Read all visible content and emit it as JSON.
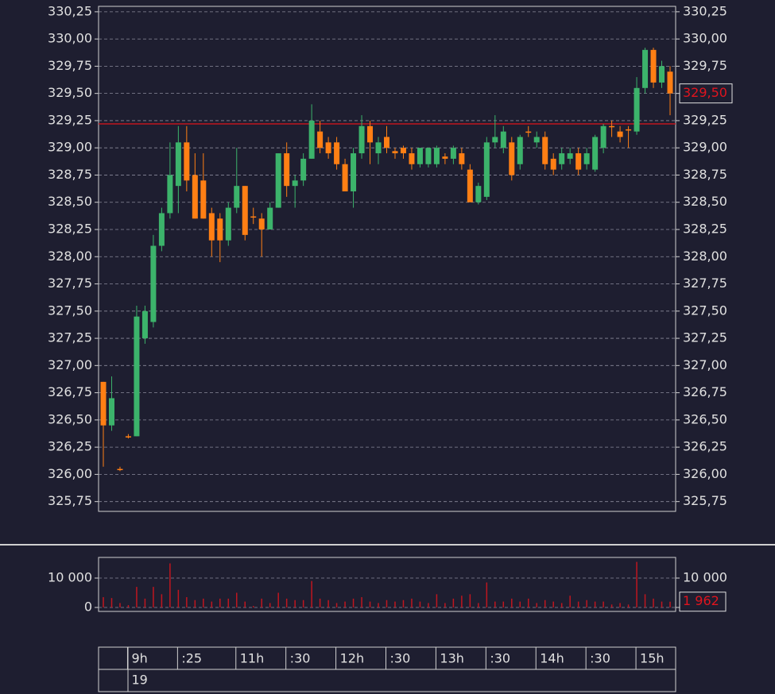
{
  "chart_data": {
    "type": "candlestick",
    "categories": [
      null,
      null,
      null,
      "9h",
      null,
      null,
      null,
      null,
      null,
      ":25",
      null,
      null,
      null,
      null,
      null,
      null,
      "11h",
      null,
      null,
      null,
      null,
      null,
      ":30",
      null,
      null,
      null,
      null,
      null,
      "12h",
      null,
      null,
      null,
      null,
      null,
      ":30",
      null,
      null,
      null,
      null,
      null,
      "13h",
      null,
      null,
      null,
      null,
      null,
      ":30",
      null,
      null,
      null,
      null,
      null,
      "14h",
      null,
      null,
      null,
      null,
      null,
      ":30",
      null,
      null,
      null,
      null,
      null,
      "15h",
      null,
      null,
      null,
      null
    ],
    "date_label": "19",
    "open": [
      326.85,
      326.45,
      326.05,
      326.35,
      326.35,
      327.25,
      327.4,
      328.1,
      328.4,
      328.65,
      329.05,
      328.75,
      328.7,
      328.4,
      328.35,
      328.15,
      328.45,
      328.65,
      328.37,
      328.35,
      328.25,
      328.45,
      328.95,
      328.65,
      328.7,
      328.9,
      329.15,
      329.05,
      329.05,
      328.85,
      328.6,
      328.95,
      329.2,
      328.95,
      329.1,
      328.97,
      329.0,
      328.95,
      328.85,
      328.85,
      328.85,
      328.92,
      328.9,
      328.95,
      328.8,
      328.5,
      328.55,
      329.05,
      329.0,
      329.05,
      328.85,
      329.15,
      329.05,
      329.1,
      328.9,
      328.85,
      328.9,
      328.95,
      328.85,
      328.8,
      329.0,
      329.2,
      329.15,
      329.17,
      329.15,
      329.55,
      329.9,
      329.6,
      329.7
    ],
    "high": [
      326.85,
      326.9,
      326.07,
      326.37,
      327.55,
      327.55,
      328.2,
      328.45,
      329.05,
      329.2,
      329.2,
      328.95,
      328.95,
      328.45,
      328.4,
      328.5,
      329.0,
      328.65,
      328.45,
      328.4,
      328.5,
      328.95,
      329.05,
      328.75,
      328.95,
      329.4,
      329.25,
      329.1,
      329.1,
      328.9,
      329.0,
      329.3,
      329.25,
      329.1,
      329.2,
      329.0,
      329.02,
      329.0,
      329.0,
      329.0,
      329.02,
      328.95,
      329.02,
      329.0,
      328.85,
      328.68,
      329.1,
      329.3,
      329.2,
      329.1,
      329.12,
      329.2,
      329.15,
      329.15,
      328.95,
      329.0,
      329.0,
      329.0,
      329.0,
      329.12,
      329.22,
      329.25,
      329.2,
      329.2,
      329.65,
      329.92,
      329.92,
      329.8,
      329.75
    ],
    "low": [
      326.07,
      326.4,
      326.03,
      326.33,
      326.35,
      327.2,
      327.35,
      328.05,
      328.35,
      328.4,
      328.6,
      328.35,
      328.35,
      328.0,
      327.95,
      328.1,
      328.4,
      328.15,
      328.3,
      328.0,
      328.25,
      328.45,
      328.55,
      328.45,
      328.65,
      328.9,
      328.95,
      328.9,
      328.8,
      328.6,
      328.45,
      328.9,
      328.85,
      328.85,
      328.95,
      328.9,
      328.9,
      328.8,
      328.82,
      328.82,
      328.82,
      328.85,
      328.85,
      328.8,
      328.5,
      328.48,
      328.52,
      329.0,
      328.95,
      328.7,
      328.8,
      329.1,
      329.0,
      328.8,
      328.75,
      328.8,
      328.85,
      328.75,
      328.8,
      328.78,
      328.95,
      329.1,
      329.05,
      329.0,
      329.12,
      329.5,
      329.55,
      329.55,
      329.3
    ],
    "close": [
      326.45,
      326.7,
      326.05,
      326.35,
      327.45,
      327.5,
      328.1,
      328.4,
      328.75,
      329.05,
      328.7,
      328.35,
      328.35,
      328.15,
      328.15,
      328.45,
      328.65,
      328.2,
      328.37,
      328.25,
      328.45,
      328.95,
      328.65,
      328.7,
      328.9,
      329.25,
      329.0,
      328.95,
      328.85,
      328.6,
      328.95,
      329.2,
      329.05,
      329.05,
      329.0,
      328.95,
      328.95,
      328.85,
      329.0,
      329.0,
      329.0,
      328.9,
      329.0,
      328.85,
      328.5,
      328.65,
      329.05,
      329.1,
      329.15,
      328.75,
      329.1,
      329.15,
      329.1,
      328.85,
      328.8,
      328.95,
      328.95,
      328.8,
      328.95,
      329.1,
      329.2,
      329.2,
      329.1,
      329.17,
      329.55,
      329.9,
      329.6,
      329.75,
      329.5
    ],
    "up_color": "#3cb36b",
    "down_color": "#ff7f14",
    "ylim": [
      325.66,
      330.3
    ],
    "yticks": [
      {
        "value": 325.75,
        "label": "325,75"
      },
      {
        "value": 326,
        "label": "326,00"
      },
      {
        "value": 326.25,
        "label": "326,25"
      },
      {
        "value": 326.5,
        "label": "326,50"
      },
      {
        "value": 326.75,
        "label": "326,75"
      },
      {
        "value": 327,
        "label": "327,00"
      },
      {
        "value": 327.25,
        "label": "327,25"
      },
      {
        "value": 327.5,
        "label": "327,50"
      },
      {
        "value": 327.75,
        "label": "327,75"
      },
      {
        "value": 328,
        "label": "328,00"
      },
      {
        "value": 328.25,
        "label": "328,25"
      },
      {
        "value": 328.5,
        "label": "328,50"
      },
      {
        "value": 328.75,
        "label": "328,75"
      },
      {
        "value": 329,
        "label": "329,00"
      },
      {
        "value": 329.25,
        "label": "329,25"
      },
      {
        "value": 329.5,
        "label": "329,50"
      },
      {
        "value": 329.75,
        "label": "329,75"
      },
      {
        "value": 330,
        "label": "330,00"
      },
      {
        "value": 330.25,
        "label": "330,25"
      }
    ],
    "grid": true,
    "reference_line": {
      "value": 329.22,
      "color": "#c0161f"
    },
    "last_price": {
      "value": 329.5,
      "label": "329,50"
    },
    "volume": {
      "values": [
        3500,
        3200,
        1500,
        800,
        7000,
        3000,
        7000,
        4500,
        15000,
        6000,
        3500,
        2500,
        3000,
        2000,
        3000,
        3000,
        5000,
        2000,
        500,
        3000,
        1500,
        5000,
        3000,
        2500,
        2500,
        9000,
        3000,
        2500,
        1500,
        2000,
        3000,
        3500,
        2000,
        1500,
        2500,
        2000,
        2500,
        3000,
        2000,
        1500,
        4500,
        1500,
        3000,
        4000,
        4500,
        1500,
        8500,
        2000,
        2000,
        3000,
        2000,
        3000,
        1500,
        2500,
        2000,
        1500,
        4000,
        2000,
        2500,
        2000,
        2000,
        1000,
        1500,
        1000,
        15500,
        4500,
        3000,
        2000,
        1962
      ],
      "color": "#c0161f",
      "ylim": [
        -1351,
        17027
      ],
      "yticks": [
        0,
        {
          "value": 10000,
          "label": "10 000"
        }
      ],
      "last": {
        "value": 1962,
        "label": "1 962"
      }
    }
  }
}
